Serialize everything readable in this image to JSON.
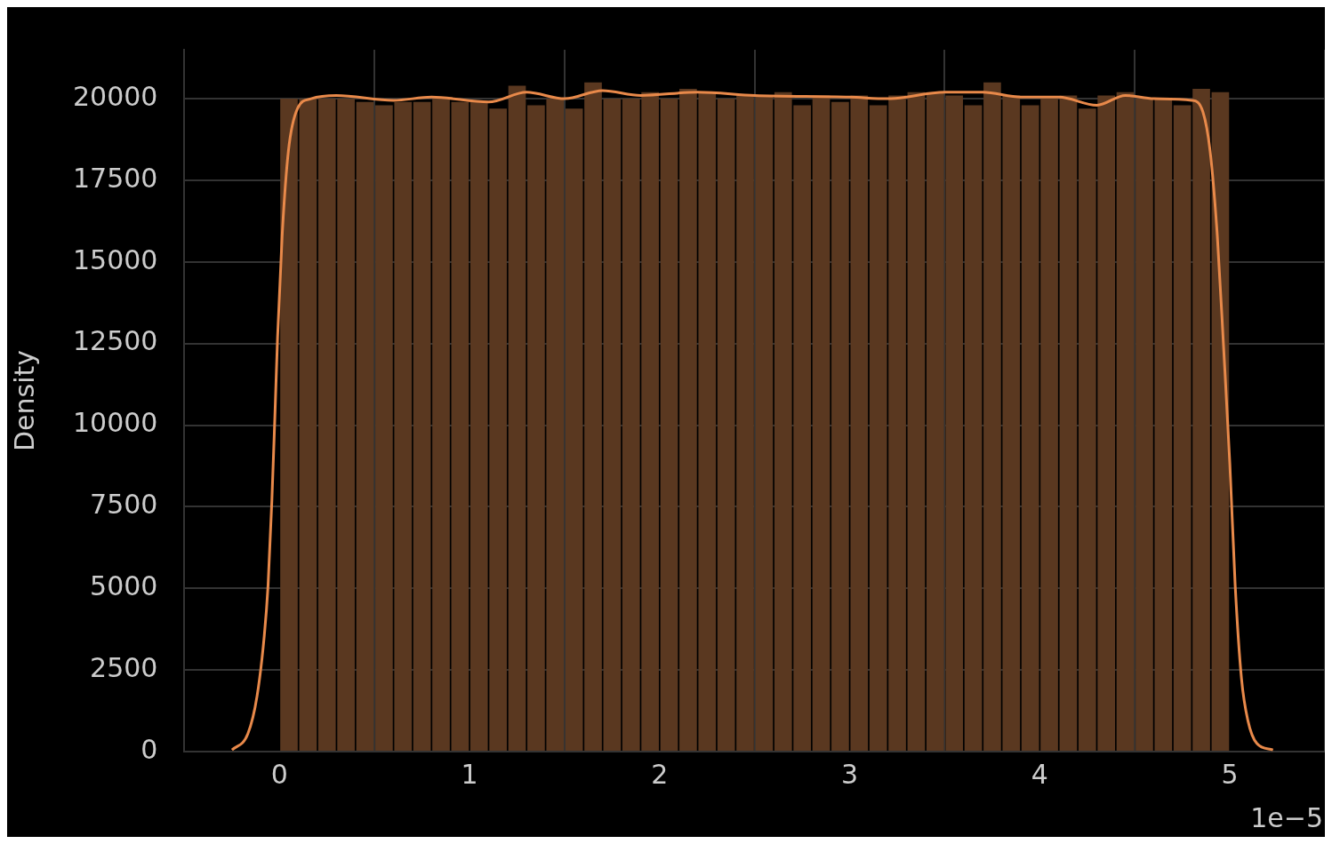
{
  "chart_data": {
    "type": "histogram",
    "ylabel": "Density",
    "color": "#5a3820",
    "bins": [
      0,
      0.1,
      0.2,
      0.3,
      0.4,
      0.5,
      0.6,
      0.7,
      0.8,
      0.9,
      1,
      1.1,
      1.2,
      1.3,
      1.4,
      1.5,
      1.6,
      1.7,
      1.8,
      1.9,
      2,
      2.1,
      2.2,
      2.3,
      2.4,
      2.5,
      2.6,
      2.7,
      2.8,
      2.9,
      3,
      3.1,
      3.2,
      3.3,
      3.4,
      3.5,
      3.6,
      3.7,
      3.8,
      3.9,
      4,
      4.1,
      4.2,
      4.3,
      4.4,
      4.5,
      4.6,
      4.7,
      4.8,
      4.9,
      5
    ],
    "values": [
      20000,
      20000,
      20000,
      20000,
      19900,
      19800,
      19900,
      19900,
      20000,
      19900,
      19900,
      19700,
      20400,
      19800,
      20000,
      19700,
      20500,
      20000,
      20000,
      20200,
      20000,
      20300,
      20200,
      20000,
      20100,
      20100,
      20200,
      19800,
      20100,
      19900,
      20100,
      19800,
      20100,
      20200,
      20200,
      20100,
      19800,
      20500,
      20100,
      19800,
      20000,
      20100,
      19700,
      20100,
      20200,
      20000,
      20000,
      19800,
      20300,
      20200
    ],
    "series": [
      {
        "type": "line",
        "color": "#e8894a",
        "x": [
          -0.25,
          -0.166,
          -0.118,
          -0.08,
          -0.06,
          -0.04,
          -0.024,
          -0.01,
          0.014,
          0.047,
          0.095,
          0.166,
          0.3,
          0.6,
          0.8,
          1.1,
          1.3,
          1.5,
          1.7,
          1.9,
          2.2,
          2.5,
          3,
          3.2,
          3.5,
          3.7,
          3.9,
          4.1,
          4.3,
          4.45,
          4.6,
          4.8,
          4.858,
          4.896,
          4.934,
          4.967,
          5,
          5.028,
          5.061,
          5.095,
          5.142,
          5.227
        ],
        "values": [
          50,
          550,
          1700,
          3550,
          5100,
          7700,
          10300,
          12700,
          15800,
          18400,
          19700,
          20000,
          20100,
          19950,
          20050,
          19900,
          20200,
          20000,
          20250,
          20100,
          20200,
          20100,
          20050,
          20000,
          20200,
          20200,
          20050,
          20050,
          19800,
          20100,
          20000,
          19950,
          19600,
          18400,
          15800,
          12400,
          8800,
          5100,
          2250,
          950,
          250,
          50
        ]
      }
    ],
    "xlim": [
      -0.5,
      5.5
    ],
    "xticks": [
      0,
      1,
      2,
      3,
      4,
      5
    ],
    "ylim": [
      0,
      21500
    ],
    "yticks": [
      0,
      2500,
      5000,
      7500,
      10000,
      12500,
      15000,
      17500,
      20000
    ],
    "grid": true,
    "annotations": [
      "1e−5"
    ]
  }
}
